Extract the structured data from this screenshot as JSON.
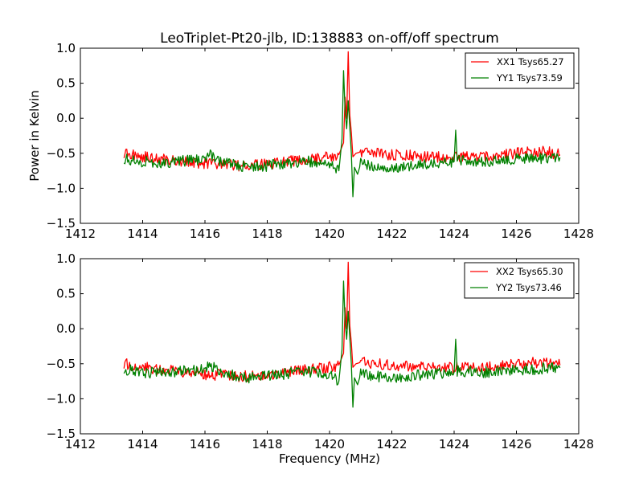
{
  "chart_data": [
    {
      "type": "line",
      "title": "LeoTriplet-Pt20-jlb, ID:138883 on-off/off spectrum",
      "xlabel": "",
      "ylabel": "Power in Kelvin",
      "xlim": [
        1412,
        1428
      ],
      "ylim": [
        -1.5,
        1.0
      ],
      "xticks": [
        1412,
        1414,
        1416,
        1418,
        1420,
        1422,
        1424,
        1426,
        1428
      ],
      "yticks": [
        -1.5,
        -1.0,
        -0.5,
        0.0,
        0.5,
        1.0
      ],
      "xtick_labels": [
        "1412",
        "1414",
        "1416",
        "1418",
        "1420",
        "1422",
        "1424",
        "1426",
        "1428"
      ],
      "ytick_labels": [
        "−1.5",
        "−1.0",
        "−0.5",
        "0.0",
        "0.5",
        "1.0"
      ],
      "grid": false,
      "legend_position": "top-right",
      "series": [
        {
          "name": "XX1 Tsys65.27",
          "color": "#ff0000",
          "x": [
            1413.4,
            1414.0,
            1414.5,
            1415.0,
            1415.5,
            1416.0,
            1416.5,
            1417.0,
            1417.5,
            1418.0,
            1418.5,
            1419.0,
            1419.5,
            1420.0,
            1420.3,
            1420.45,
            1420.5,
            1420.55,
            1420.6,
            1420.65,
            1420.7,
            1420.75,
            1420.85,
            1421.0,
            1421.5,
            1422.0,
            1422.5,
            1423.0,
            1423.5,
            1424.0,
            1424.5,
            1425.0,
            1425.5,
            1426.0,
            1426.5,
            1427.0,
            1427.4
          ],
          "values": [
            -0.5,
            -0.55,
            -0.58,
            -0.6,
            -0.62,
            -0.65,
            -0.66,
            -0.68,
            -0.67,
            -0.65,
            -0.63,
            -0.6,
            -0.58,
            -0.55,
            -0.52,
            -0.35,
            0.3,
            0.0,
            0.95,
            0.05,
            -0.2,
            -0.55,
            -0.5,
            -0.48,
            -0.5,
            -0.52,
            -0.53,
            -0.55,
            -0.55,
            -0.56,
            -0.55,
            -0.55,
            -0.53,
            -0.5,
            -0.48,
            -0.48,
            -0.52
          ]
        },
        {
          "name": "YY1 Tsys73.59",
          "color": "#008000",
          "x": [
            1413.4,
            1414.0,
            1414.5,
            1415.0,
            1415.5,
            1416.0,
            1416.2,
            1416.5,
            1417.0,
            1417.5,
            1418.0,
            1418.5,
            1419.0,
            1419.5,
            1420.0,
            1420.3,
            1420.4,
            1420.45,
            1420.5,
            1420.55,
            1420.6,
            1420.7,
            1420.75,
            1420.8,
            1420.9,
            1421.0,
            1421.5,
            1422.0,
            1422.5,
            1423.0,
            1423.5,
            1424.0,
            1424.05,
            1424.1,
            1424.5,
            1425.0,
            1425.5,
            1426.0,
            1426.5,
            1427.0,
            1427.4
          ],
          "values": [
            -0.58,
            -0.62,
            -0.63,
            -0.62,
            -0.6,
            -0.58,
            -0.52,
            -0.62,
            -0.67,
            -0.7,
            -0.68,
            -0.65,
            -0.62,
            -0.62,
            -0.65,
            -0.75,
            -0.3,
            0.68,
            0.1,
            -0.15,
            0.25,
            -0.5,
            -1.12,
            -0.7,
            -0.8,
            -0.65,
            -0.68,
            -0.72,
            -0.68,
            -0.66,
            -0.64,
            -0.62,
            -0.17,
            -0.6,
            -0.62,
            -0.62,
            -0.6,
            -0.58,
            -0.58,
            -0.56,
            -0.56
          ]
        }
      ]
    },
    {
      "type": "line",
      "title": "",
      "xlabel": "Frequency (MHz)",
      "ylabel": "",
      "xlim": [
        1412,
        1428
      ],
      "ylim": [
        -1.5,
        1.0
      ],
      "xticks": [
        1412,
        1414,
        1416,
        1418,
        1420,
        1422,
        1424,
        1426,
        1428
      ],
      "yticks": [
        -1.5,
        -1.0,
        -0.5,
        0.0,
        0.5,
        1.0
      ],
      "xtick_labels": [
        "1412",
        "1414",
        "1416",
        "1418",
        "1420",
        "1422",
        "1424",
        "1426",
        "1428"
      ],
      "ytick_labels": [
        "−1.5",
        "−1.0",
        "−0.5",
        "0.0",
        "0.5",
        "1.0"
      ],
      "grid": false,
      "legend_position": "top-right",
      "series": [
        {
          "name": "XX2 Tsys65.30",
          "color": "#ff0000",
          "x": [
            1413.4,
            1414.0,
            1414.5,
            1415.0,
            1415.5,
            1416.0,
            1416.5,
            1417.0,
            1417.5,
            1418.0,
            1418.5,
            1419.0,
            1419.5,
            1420.0,
            1420.3,
            1420.45,
            1420.5,
            1420.55,
            1420.6,
            1420.65,
            1420.7,
            1420.75,
            1420.85,
            1421.0,
            1421.5,
            1422.0,
            1422.5,
            1423.0,
            1423.5,
            1424.0,
            1424.5,
            1425.0,
            1425.5,
            1426.0,
            1426.5,
            1427.0,
            1427.4
          ],
          "values": [
            -0.5,
            -0.55,
            -0.58,
            -0.6,
            -0.62,
            -0.65,
            -0.66,
            -0.68,
            -0.67,
            -0.65,
            -0.63,
            -0.6,
            -0.58,
            -0.55,
            -0.52,
            -0.35,
            0.3,
            0.0,
            0.95,
            0.05,
            -0.2,
            -0.55,
            -0.5,
            -0.48,
            -0.5,
            -0.52,
            -0.53,
            -0.55,
            -0.55,
            -0.56,
            -0.55,
            -0.55,
            -0.53,
            -0.5,
            -0.48,
            -0.48,
            -0.52
          ]
        },
        {
          "name": "YY2 Tsys73.46",
          "color": "#008000",
          "x": [
            1413.4,
            1414.0,
            1414.5,
            1415.0,
            1415.5,
            1416.0,
            1416.2,
            1416.5,
            1417.0,
            1417.5,
            1418.0,
            1418.5,
            1419.0,
            1419.5,
            1420.0,
            1420.3,
            1420.4,
            1420.45,
            1420.5,
            1420.55,
            1420.6,
            1420.7,
            1420.75,
            1420.8,
            1420.9,
            1421.0,
            1421.5,
            1422.0,
            1422.5,
            1423.0,
            1423.5,
            1424.0,
            1424.05,
            1424.1,
            1424.5,
            1425.0,
            1425.5,
            1426.0,
            1426.5,
            1427.0,
            1427.4
          ],
          "values": [
            -0.58,
            -0.62,
            -0.63,
            -0.62,
            -0.6,
            -0.58,
            -0.52,
            -0.62,
            -0.67,
            -0.7,
            -0.68,
            -0.65,
            -0.62,
            -0.62,
            -0.65,
            -0.75,
            -0.3,
            0.68,
            0.1,
            -0.15,
            0.25,
            -0.5,
            -1.12,
            -0.7,
            -0.8,
            -0.65,
            -0.68,
            -0.72,
            -0.68,
            -0.66,
            -0.64,
            -0.62,
            -0.15,
            -0.6,
            -0.62,
            -0.62,
            -0.6,
            -0.58,
            -0.58,
            -0.56,
            -0.56
          ]
        }
      ]
    }
  ]
}
